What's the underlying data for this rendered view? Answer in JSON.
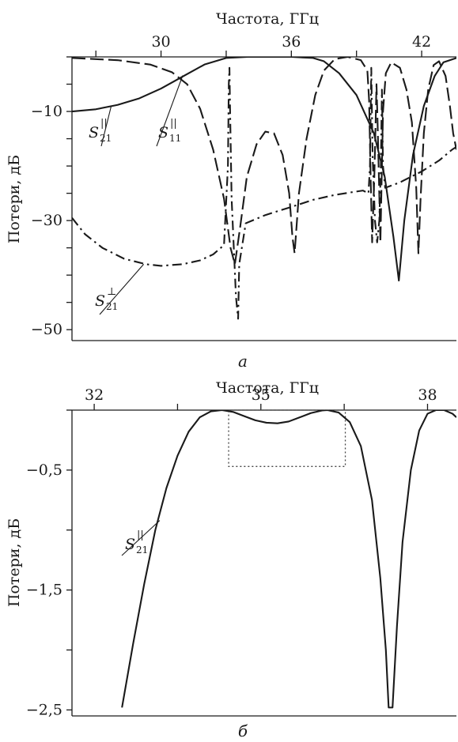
{
  "chart_data": [
    {
      "id": "a",
      "type": "line",
      "panel_label": "а",
      "xlabel": "Частота, ГГц",
      "ylabel": "Потери, дБ",
      "x_axis_position": "top",
      "xlim": [
        25.9,
        43.6
      ],
      "ylim": [
        -52,
        0
      ],
      "x_ticks": [
        24,
        27,
        30,
        33,
        36,
        39,
        42
      ],
      "x_tick_labels": [
        "30",
        "36",
        "42"
      ],
      "x_tick_label_values": [
        30,
        36,
        42
      ],
      "y_ticks": [
        0,
        -5,
        -10,
        -15,
        -20,
        -25,
        -30,
        -35,
        -40,
        -45,
        -50
      ],
      "y_tick_labels": [
        "−10",
        "−30",
        "−50"
      ],
      "y_tick_label_values": [
        -10,
        -30,
        -50
      ],
      "grid": false,
      "series": [
        {
          "key": "s21_par",
          "label": {
            "main": "S",
            "sub": "21",
            "sup": "||"
          },
          "style": "solid",
          "points": [
            [
              25.9,
              -10
            ],
            [
              27,
              -9.6
            ],
            [
              28,
              -8.8
            ],
            [
              29,
              -7.6
            ],
            [
              30,
              -5.8
            ],
            [
              31,
              -3.6
            ],
            [
              32,
              -1.4
            ],
            [
              33,
              -0.2
            ],
            [
              34,
              0
            ],
            [
              36,
              0
            ],
            [
              37,
              -0.2
            ],
            [
              37.5,
              -0.8
            ],
            [
              38.2,
              -3
            ],
            [
              39,
              -7
            ],
            [
              39.8,
              -14
            ],
            [
              40.3,
              -22
            ],
            [
              40.7,
              -33
            ],
            [
              40.95,
              -41
            ],
            [
              41.2,
              -30
            ],
            [
              41.6,
              -18
            ],
            [
              42.1,
              -9
            ],
            [
              42.6,
              -3.5
            ],
            [
              43,
              -1
            ],
            [
              43.6,
              -0.2
            ]
          ]
        },
        {
          "key": "s11_par",
          "label": {
            "main": "S",
            "sub": "11",
            "sup": "||"
          },
          "style": "long-dash",
          "points": [
            [
              25.9,
              -0.2
            ],
            [
              28,
              -0.6
            ],
            [
              29.5,
              -1.4
            ],
            [
              30.5,
              -2.8
            ],
            [
              31.2,
              -5
            ],
            [
              31.8,
              -9.5
            ],
            [
              32.4,
              -17
            ],
            [
              32.9,
              -26
            ],
            [
              33.2,
              -35
            ],
            [
              33.4,
              -38
            ],
            [
              33.65,
              -31
            ],
            [
              33.95,
              -22
            ],
            [
              34.4,
              -16
            ],
            [
              34.8,
              -13.7
            ],
            [
              35.2,
              -14
            ],
            [
              35.6,
              -18
            ],
            [
              35.9,
              -25
            ],
            [
              36.05,
              -33
            ],
            [
              36.15,
              -36
            ],
            [
              36.35,
              -25
            ],
            [
              36.7,
              -15
            ],
            [
              37.1,
              -7
            ],
            [
              37.5,
              -2.5
            ],
            [
              38,
              -0.4
            ],
            [
              38.6,
              0
            ],
            [
              39.2,
              -0.6
            ],
            [
              39.5,
              -2.5
            ],
            [
              39.58,
              -8
            ],
            [
              39.65,
              -22
            ],
            [
              39.72,
              -34
            ],
            [
              39.82,
              -22
            ],
            [
              39.88,
              -12
            ],
            [
              39.92,
              -5
            ],
            [
              39.97,
              -12
            ],
            [
              40.03,
              -22
            ],
            [
              40.1,
              -34
            ],
            [
              40.16,
              -22
            ],
            [
              40.22,
              -10
            ],
            [
              40.35,
              -3
            ],
            [
              40.6,
              -1
            ],
            [
              41,
              -2
            ],
            [
              41.3,
              -6
            ],
            [
              41.55,
              -12
            ],
            [
              41.75,
              -24
            ],
            [
              41.85,
              -36
            ],
            [
              41.95,
              -26
            ],
            [
              42.1,
              -14
            ],
            [
              42.3,
              -6
            ],
            [
              42.55,
              -1.5
            ],
            [
              42.8,
              -0.8
            ],
            [
              43.1,
              -3.5
            ],
            [
              43.3,
              -9
            ],
            [
              43.45,
              -14
            ],
            [
              43.6,
              -17
            ]
          ]
        },
        {
          "key": "s21_perp",
          "label": {
            "main": "S",
            "sub": "21",
            "sup": "⊥"
          },
          "style": "dash-dot",
          "points": [
            [
              25.9,
              -29.5
            ],
            [
              26.5,
              -32.5
            ],
            [
              27.3,
              -35
            ],
            [
              28.3,
              -37
            ],
            [
              29.3,
              -38
            ],
            [
              30,
              -38.3
            ],
            [
              31,
              -38
            ],
            [
              31.8,
              -37.3
            ],
            [
              32.4,
              -36.2
            ],
            [
              32.9,
              -34.5
            ],
            [
              33.08,
              -20
            ],
            [
              33.12,
              -5
            ],
            [
              33.15,
              -2
            ],
            [
              33.18,
              -10
            ],
            [
              33.25,
              -26
            ],
            [
              33.45,
              -44
            ],
            [
              33.55,
              -48
            ],
            [
              33.6,
              -38
            ],
            [
              33.9,
              -30.5
            ],
            [
              34.8,
              -29
            ],
            [
              36,
              -27.5
            ],
            [
              37,
              -26.2
            ],
            [
              38,
              -25.3
            ],
            [
              38.8,
              -24.8
            ],
            [
              39.3,
              -24.5
            ],
            [
              39.55,
              -25
            ],
            [
              39.62,
              -20
            ],
            [
              39.68,
              -2
            ],
            [
              39.74,
              -18
            ],
            [
              39.85,
              -30
            ],
            [
              39.95,
              -34
            ],
            [
              40.05,
              -30
            ],
            [
              40.12,
              -20
            ],
            [
              40.17,
              -6
            ],
            [
              40.22,
              -20
            ],
            [
              40.32,
              -24
            ],
            [
              41,
              -23
            ],
            [
              42,
              -21
            ],
            [
              42.8,
              -19
            ],
            [
              43.4,
              -17
            ],
            [
              43.6,
              -16.5
            ]
          ]
        }
      ]
    },
    {
      "id": "b",
      "type": "line",
      "panel_label": "б",
      "xlabel": "Частота, ГГц",
      "ylabel": "Потери, дБ",
      "x_axis_position": "top",
      "xlim": [
        31.6,
        38.52
      ],
      "ylim": [
        -2.55,
        0
      ],
      "x_ticks": [
        30.5,
        32,
        33.5,
        35,
        36.5,
        38
      ],
      "x_tick_labels": [
        "32",
        "35",
        "38"
      ],
      "x_tick_label_values": [
        32,
        35,
        38
      ],
      "y_ticks": [
        0,
        -0.5,
        -1,
        -1.5,
        -2,
        -2.5
      ],
      "y_tick_labels": [
        "−0,5",
        "−1,5",
        "−2,5"
      ],
      "y_tick_label_values": [
        -0.5,
        -1.5,
        -2.5
      ],
      "grid": false,
      "passband_box": {
        "x": [
          34.42,
          36.52
        ],
        "y": [
          -0.47,
          0
        ]
      },
      "series": [
        {
          "key": "s21_par",
          "label": {
            "main": "S",
            "sub": "21",
            "sup": "||"
          },
          "style": "solid",
          "points": [
            [
              32.5,
              -2.48
            ],
            [
              32.7,
              -1.95
            ],
            [
              32.9,
              -1.45
            ],
            [
              33.1,
              -1.0
            ],
            [
              33.3,
              -0.65
            ],
            [
              33.5,
              -0.38
            ],
            [
              33.7,
              -0.18
            ],
            [
              33.9,
              -0.06
            ],
            [
              34.1,
              -0.01
            ],
            [
              34.3,
              0
            ],
            [
              34.5,
              -0.015
            ],
            [
              34.7,
              -0.05
            ],
            [
              34.9,
              -0.085
            ],
            [
              35.1,
              -0.105
            ],
            [
              35.3,
              -0.11
            ],
            [
              35.5,
              -0.095
            ],
            [
              35.7,
              -0.06
            ],
            [
              35.9,
              -0.025
            ],
            [
              36.1,
              -0.003
            ],
            [
              36.2,
              0
            ],
            [
              36.4,
              -0.02
            ],
            [
              36.6,
              -0.1
            ],
            [
              36.8,
              -0.3
            ],
            [
              37.0,
              -0.75
            ],
            [
              37.15,
              -1.4
            ],
            [
              37.25,
              -2.0
            ],
            [
              37.3,
              -2.48
            ],
            [
              37.37,
              -2.48
            ],
            [
              37.45,
              -1.8
            ],
            [
              37.55,
              -1.1
            ],
            [
              37.7,
              -0.5
            ],
            [
              37.85,
              -0.17
            ],
            [
              38.0,
              -0.03
            ],
            [
              38.15,
              0
            ],
            [
              38.3,
              0
            ],
            [
              38.45,
              -0.03
            ],
            [
              38.52,
              -0.06
            ]
          ]
        }
      ]
    }
  ]
}
